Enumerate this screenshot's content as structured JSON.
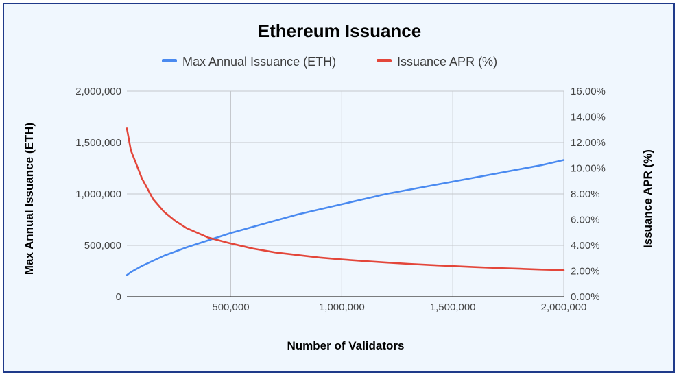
{
  "chart_data": {
    "type": "line",
    "title": "Ethereum Issuance",
    "xlabel": "Number of Validators",
    "ylabel_left": "Max Annual Issuance (ETH)",
    "ylabel_right": "Issuance APR (%)",
    "xlim": [
      32000,
      2000000
    ],
    "ylim_left": [
      0,
      2000000
    ],
    "ylim_right": [
      0,
      16
    ],
    "grid": true,
    "legend_position": "top",
    "x_ticks": [
      {
        "value": 500000,
        "label": "500,000"
      },
      {
        "value": 1000000,
        "label": "1,000,000"
      },
      {
        "value": 1500000,
        "label": "1,500,000"
      },
      {
        "value": 2000000,
        "label": "2,000,000"
      }
    ],
    "y_left_ticks": [
      {
        "value": 0,
        "label": "0"
      },
      {
        "value": 500000,
        "label": "500,000"
      },
      {
        "value": 1000000,
        "label": "1,000,000"
      },
      {
        "value": 1500000,
        "label": "1,500,000"
      },
      {
        "value": 2000000,
        "label": "2,000,000"
      }
    ],
    "y_right_ticks": [
      {
        "value": 0,
        "label": "0.00%"
      },
      {
        "value": 2,
        "label": "2.00%"
      },
      {
        "value": 4,
        "label": "4.00%"
      },
      {
        "value": 6,
        "label": "6.00%"
      },
      {
        "value": 8,
        "label": "8.00%"
      },
      {
        "value": 10,
        "label": "10.00%"
      },
      {
        "value": 12,
        "label": "12.00%"
      },
      {
        "value": 14,
        "label": "14.00%"
      },
      {
        "value": 16,
        "label": "16.00%"
      }
    ],
    "series": [
      {
        "name": "Max Annual Issuance (ETH)",
        "axis": "left",
        "color": "#4a8af0",
        "x": [
          32000,
          50000,
          100000,
          150000,
          200000,
          250000,
          300000,
          400000,
          500000,
          600000,
          700000,
          800000,
          900000,
          1000000,
          1100000,
          1200000,
          1300000,
          1400000,
          1500000,
          1600000,
          1700000,
          1800000,
          1900000,
          2000000
        ],
        "values": [
          210000,
          240000,
          300000,
          350000,
          400000,
          440000,
          480000,
          550000,
          620000,
          680000,
          740000,
          800000,
          850000,
          900000,
          950000,
          1000000,
          1040000,
          1080000,
          1120000,
          1160000,
          1200000,
          1240000,
          1280000,
          1330000
        ]
      },
      {
        "name": "Issuance APR (%)",
        "axis": "right",
        "color": "#e3463a",
        "x": [
          32000,
          50000,
          100000,
          150000,
          200000,
          250000,
          300000,
          400000,
          500000,
          600000,
          700000,
          800000,
          900000,
          1000000,
          1100000,
          1200000,
          1300000,
          1400000,
          1500000,
          1600000,
          1700000,
          1800000,
          1900000,
          2000000
        ],
        "values": [
          13.1,
          11.4,
          9.2,
          7.6,
          6.6,
          5.9,
          5.35,
          4.6,
          4.15,
          3.75,
          3.45,
          3.25,
          3.05,
          2.9,
          2.78,
          2.66,
          2.56,
          2.47,
          2.39,
          2.31,
          2.24,
          2.18,
          2.12,
          2.07
        ]
      }
    ]
  }
}
